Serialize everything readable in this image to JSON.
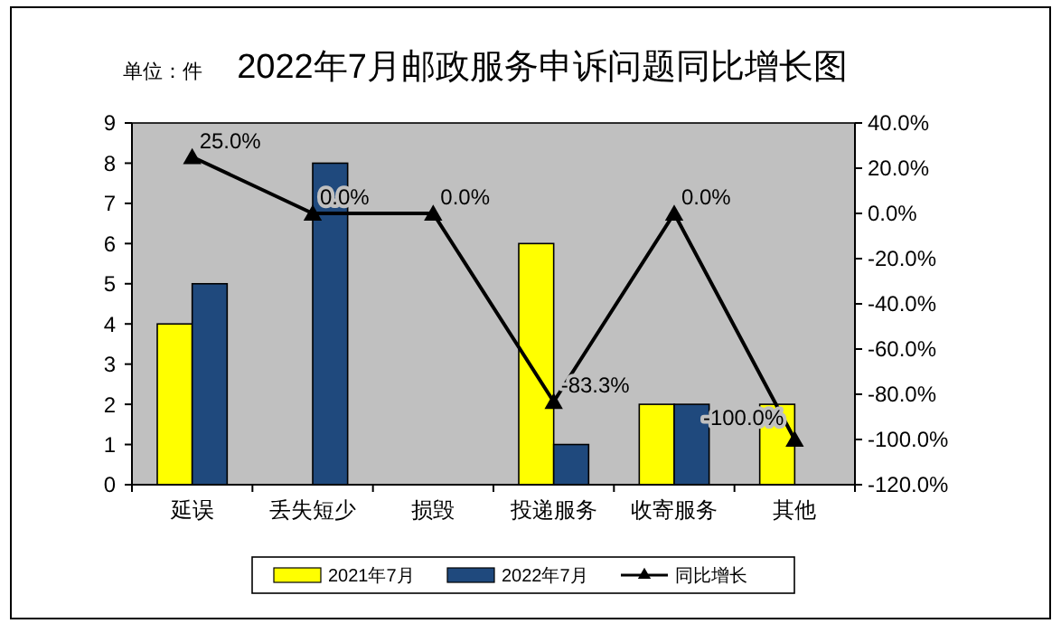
{
  "chart_data": {
    "type": "bar",
    "title": "2022年7月邮政服务申诉问题同比增长图",
    "annotations": [
      "单位：件"
    ],
    "categories": [
      "延误",
      "丢失短少",
      "损毁",
      "投递服务",
      "收寄服务",
      "其他"
    ],
    "series": [
      {
        "name": "2021年7月",
        "color": "#ffff00",
        "values": [
          4,
          0,
          0,
          6,
          2,
          2
        ]
      },
      {
        "name": "2022年7月",
        "color": "#1f497d",
        "values": [
          5,
          8,
          0,
          1,
          2,
          0
        ]
      },
      {
        "name": "同比增长",
        "type": "line",
        "axis": "y2",
        "color": "#000000",
        "values": [
          25,
          0,
          0,
          -83.3,
          0,
          -100
        ],
        "value_labels": [
          "25.0%",
          "0.0%",
          "0.0%",
          "-83.3%",
          "0.0%",
          "-100.0%"
        ]
      }
    ],
    "ylim": [
      0,
      9
    ],
    "yticks": [
      0,
      1,
      2,
      3,
      4,
      5,
      6,
      7,
      8,
      9
    ],
    "y2lim": [
      -120,
      40
    ],
    "y2ticks": [
      {
        "value": 40,
        "label": "40.0%"
      },
      {
        "value": 20,
        "label": "20.0%"
      },
      {
        "value": 0,
        "label": "0.0%"
      },
      {
        "value": -20,
        "label": "-20.0%"
      },
      {
        "value": -40,
        "label": "-40.0%"
      },
      {
        "value": -60,
        "label": "-60.0%"
      },
      {
        "value": -80,
        "label": "-80.0%"
      },
      {
        "value": -100,
        "label": "-100.0%"
      },
      {
        "value": -120,
        "label": "-120.0%"
      }
    ],
    "marker": "triangle",
    "line_style": "solid",
    "legend": "bottom"
  }
}
